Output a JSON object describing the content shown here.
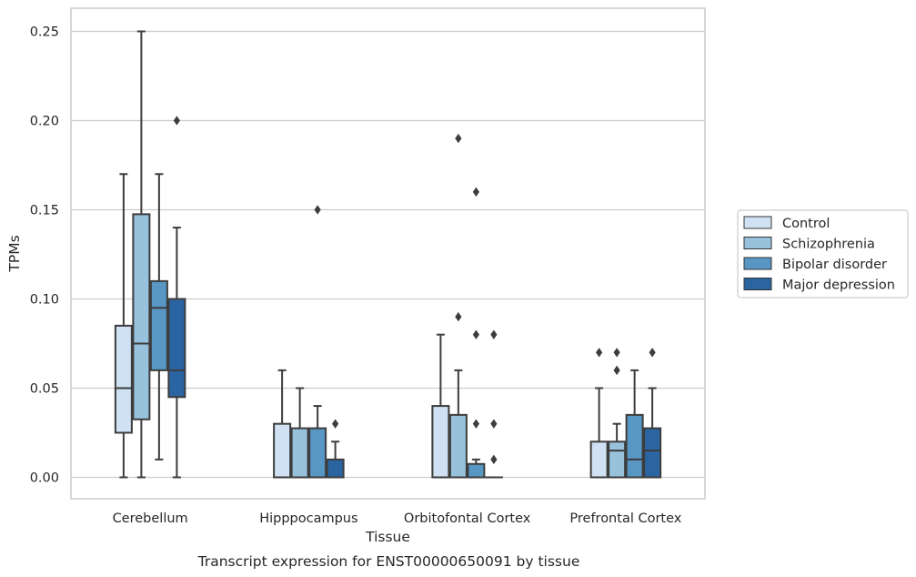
{
  "chart_data": {
    "type": "boxplot",
    "title": "Transcript expression for ENST00000650091 by tissue",
    "xlabel": "Tissue",
    "ylabel": "TPMs",
    "ylim": [
      -0.012,
      0.263
    ],
    "yticks": [
      0.0,
      0.05,
      0.1,
      0.15,
      0.2,
      0.25
    ],
    "ytick_labels": [
      "0.00",
      "0.05",
      "0.10",
      "0.15",
      "0.20",
      "0.25"
    ],
    "grid": "horizontal",
    "legend_position": "right-outside",
    "categories": [
      "Cerebellum",
      "Hipppocampus",
      "Orbitofontal Cortex",
      "Prefrontal Cortex"
    ],
    "series": [
      {
        "name": "Control",
        "color": "#cfe1f2",
        "boxes": [
          {
            "whislo": 0.0,
            "q1": 0.025,
            "med": 0.05,
            "q3": 0.085,
            "whishi": 0.17,
            "fliers": []
          },
          {
            "whislo": 0.0,
            "q1": 0.0,
            "med": 0.0,
            "q3": 0.03,
            "whishi": 0.06,
            "fliers": []
          },
          {
            "whislo": 0.0,
            "q1": 0.0,
            "med": 0.0,
            "q3": 0.04,
            "whishi": 0.08,
            "fliers": []
          },
          {
            "whislo": 0.0,
            "q1": 0.0,
            "med": 0.0,
            "q3": 0.02,
            "whishi": 0.05,
            "fliers": [
              0.07
            ]
          }
        ]
      },
      {
        "name": "Schizophrenia",
        "color": "#98c1dc",
        "boxes": [
          {
            "whislo": 0.0,
            "q1": 0.0325,
            "med": 0.075,
            "q3": 0.1475,
            "whishi": 0.25,
            "fliers": []
          },
          {
            "whislo": 0.0,
            "q1": 0.0,
            "med": 0.0,
            "q3": 0.0275,
            "whishi": 0.05,
            "fliers": []
          },
          {
            "whislo": 0.0,
            "q1": 0.0,
            "med": 0.0,
            "q3": 0.035,
            "whishi": 0.06,
            "fliers": [
              0.09,
              0.19
            ]
          },
          {
            "whislo": 0.0,
            "q1": 0.0,
            "med": 0.015,
            "q3": 0.02,
            "whishi": 0.03,
            "fliers": [
              0.06,
              0.07
            ]
          }
        ]
      },
      {
        "name": "Bipolar disorder",
        "color": "#5896c3",
        "boxes": [
          {
            "whislo": 0.01,
            "q1": 0.06,
            "med": 0.095,
            "q3": 0.11,
            "whishi": 0.17,
            "fliers": []
          },
          {
            "whislo": 0.0,
            "q1": 0.0,
            "med": 0.0,
            "q3": 0.0275,
            "whishi": 0.04,
            "fliers": [
              0.15
            ]
          },
          {
            "whislo": 0.0,
            "q1": 0.0,
            "med": 0.0,
            "q3": 0.0075,
            "whishi": 0.01,
            "fliers": [
              0.03,
              0.08,
              0.16
            ]
          },
          {
            "whislo": 0.0,
            "q1": 0.0,
            "med": 0.01,
            "q3": 0.035,
            "whishi": 0.06,
            "fliers": []
          }
        ]
      },
      {
        "name": "Major depression",
        "color": "#2a65a2",
        "boxes": [
          {
            "whislo": 0.0,
            "q1": 0.045,
            "med": 0.06,
            "q3": 0.1,
            "whishi": 0.14,
            "fliers": [
              0.2
            ]
          },
          {
            "whislo": 0.0,
            "q1": 0.0,
            "med": 0.0,
            "q3": 0.01,
            "whishi": 0.02,
            "fliers": [
              0.03
            ]
          },
          {
            "whislo": 0.0,
            "q1": 0.0,
            "med": 0.0,
            "q3": 0.0,
            "whishi": 0.0,
            "fliers": [
              0.01,
              0.03,
              0.08
            ]
          },
          {
            "whislo": 0.0,
            "q1": 0.0,
            "med": 0.015,
            "q3": 0.0275,
            "whishi": 0.05,
            "fliers": [
              0.07
            ]
          }
        ]
      }
    ]
  }
}
